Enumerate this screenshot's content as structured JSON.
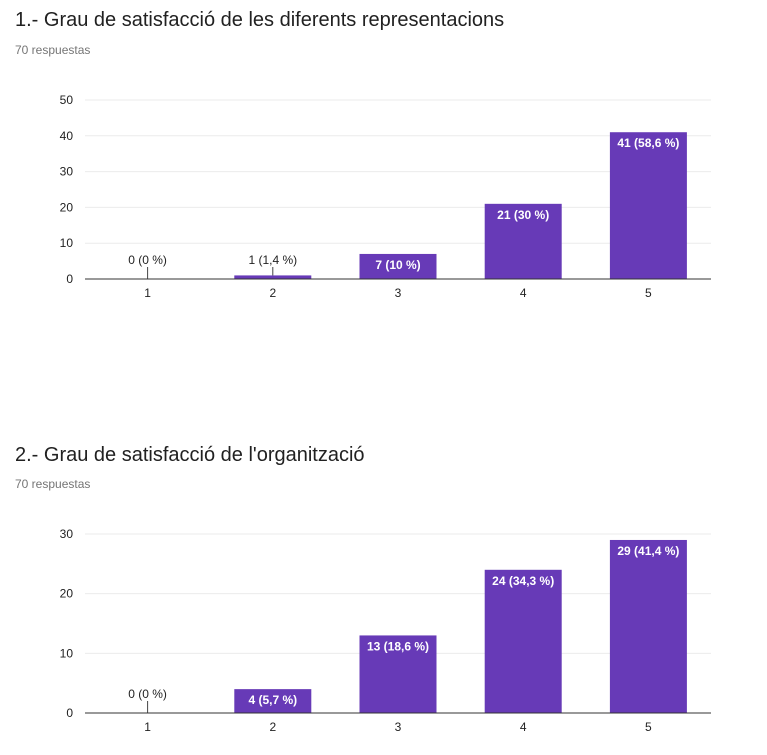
{
  "questions": [
    {
      "title": "1.- Grau de satisfacció de les diferents representacions",
      "responses": "70 respuestas"
    },
    {
      "title": "2.- Grau de satisfacció de l'organització",
      "responses": "70 respuestas"
    }
  ],
  "colors": {
    "bar": "#673ab7",
    "grid": "#ebebeb",
    "axis": "#333333"
  },
  "chart_data": [
    {
      "type": "bar",
      "title": "1.- Grau de satisfacció de les diferents representacions",
      "categories": [
        "1",
        "2",
        "3",
        "4",
        "5"
      ],
      "values": [
        0,
        1,
        7,
        21,
        41
      ],
      "data_labels": [
        "0 (0 %)",
        "1 (1,4 %)",
        "7 (10 %)",
        "21 (30 %)",
        "41 (58,6 %)"
      ],
      "ylim": [
        0,
        50
      ],
      "yticks": [
        0,
        10,
        20,
        30,
        40,
        50
      ],
      "grid": true
    },
    {
      "type": "bar",
      "title": "2.- Grau de satisfacció de l'organització",
      "categories": [
        "1",
        "2",
        "3",
        "4",
        "5"
      ],
      "values": [
        0,
        4,
        13,
        24,
        29
      ],
      "data_labels": [
        "0 (0 %)",
        "4 (5,7 %)",
        "13 (18,6 %)",
        "24 (34,3 %)",
        "29 (41,4 %)"
      ],
      "ylim": [
        0,
        30
      ],
      "yticks": [
        0,
        10,
        20,
        30
      ],
      "grid": true
    }
  ]
}
